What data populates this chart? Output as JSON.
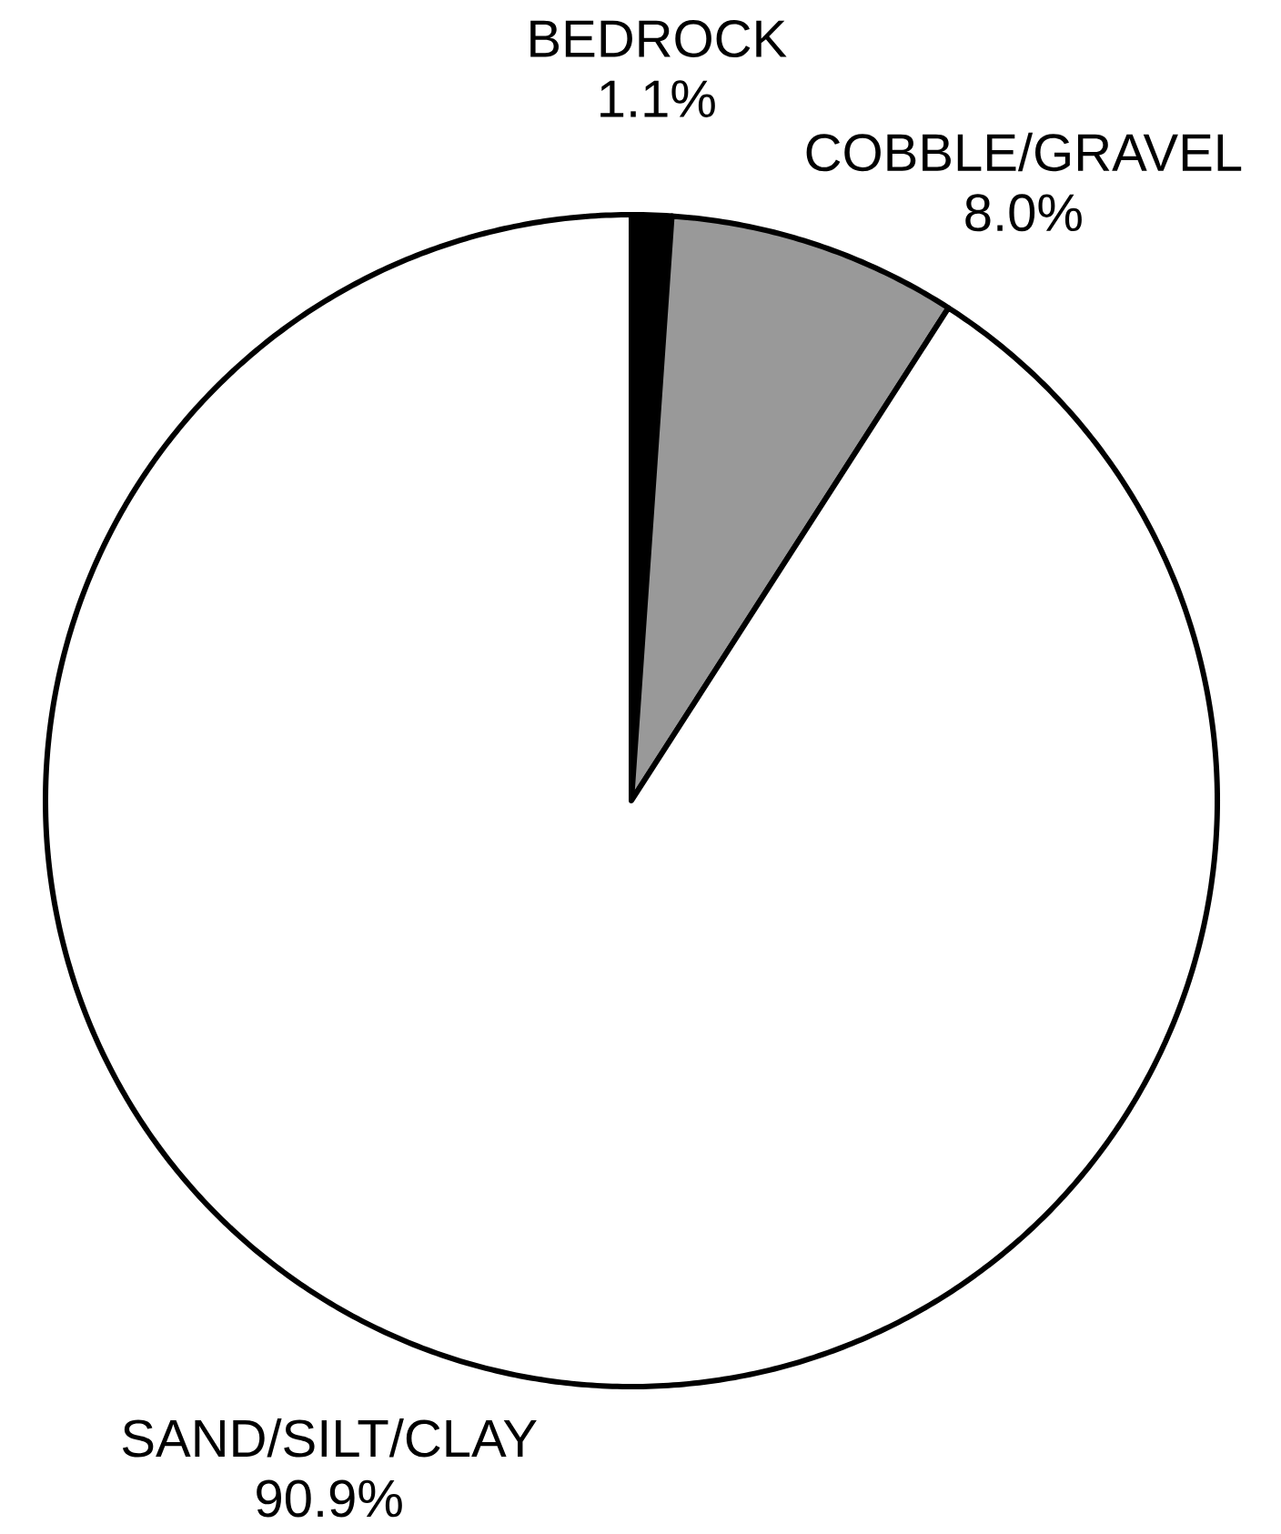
{
  "chart_data": {
    "type": "pie",
    "categories": [
      "BEDROCK",
      "COBBLE/GRAVEL",
      "SAND/SILT/CLAY"
    ],
    "values": [
      1.1,
      8.0,
      90.9
    ],
    "colors": [
      "#000000",
      "#999999",
      "#ffffff"
    ],
    "value_labels": [
      "1.1%",
      "8.0%",
      "90.9%"
    ]
  }
}
